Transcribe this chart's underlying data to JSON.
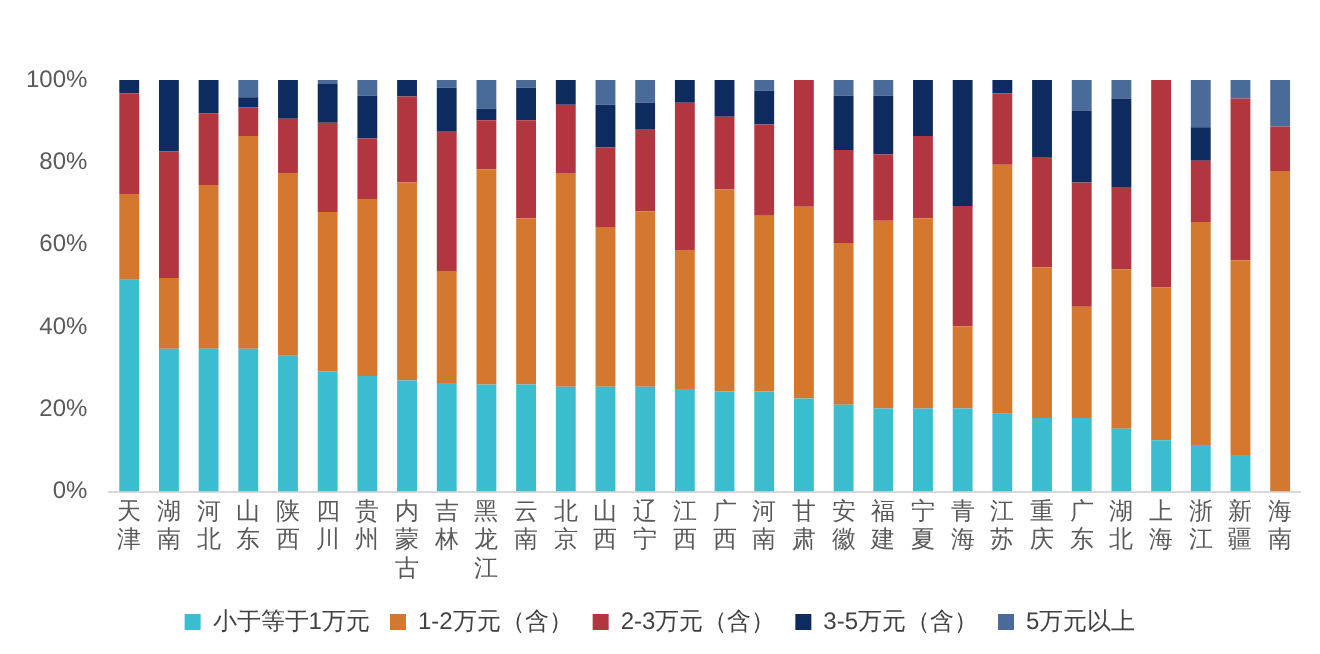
{
  "chart_data": {
    "type": "bar",
    "stacked": true,
    "legend": "bottom",
    "grid": false,
    "categories": [
      "天津",
      "湖南",
      "河北",
      "山东",
      "陕西",
      "四川",
      "贵州",
      "内蒙古",
      "吉林",
      "黑龙江",
      "云南",
      "北京",
      "山西",
      "辽宁",
      "江西",
      "广西",
      "河南",
      "甘肃",
      "安徽",
      "福建",
      "宁夏",
      "青海",
      "江苏",
      "重庆",
      "广东",
      "湖北",
      "上海",
      "浙江",
      "新疆",
      "海南"
    ],
    "ylim": [
      0,
      100
    ],
    "yticks": [
      {
        "value": 0,
        "label": "0%"
      },
      {
        "value": 20,
        "label": "20%"
      },
      {
        "value": 40,
        "label": "40%"
      },
      {
        "value": 60,
        "label": "60%"
      },
      {
        "value": 80,
        "label": "80%"
      },
      {
        "value": 100,
        "label": "100%"
      }
    ],
    "series": [
      {
        "name": "小于等于1万元",
        "color": "#3bbccf",
        "values": [
          51.5,
          34.7,
          34.7,
          34.7,
          33,
          29.2,
          28.1,
          27,
          26.4,
          26,
          26,
          25.5,
          25.5,
          25.5,
          24.9,
          24.3,
          24.3,
          22.6,
          21.1,
          20.2,
          20.2,
          20.2,
          18.9,
          17.9,
          17.9,
          15.3,
          12.5,
          11.3,
          8.9,
          0
        ]
      },
      {
        "name": "1-2万元（含）",
        "color": "#d4772f",
        "values": [
          20.8,
          17.2,
          39.8,
          51.7,
          44.4,
          38.7,
          43,
          48.1,
          27.2,
          52.3,
          40.4,
          51.9,
          38.8,
          42.6,
          33.8,
          49.1,
          42.7,
          46.6,
          39.3,
          45.6,
          46.2,
          20,
          60.5,
          36.6,
          27,
          38.7,
          37.1,
          54.2,
          47.3,
          77.9
        ]
      },
      {
        "name": "2-3万元（含）",
        "color": "#b23640",
        "values": [
          24.5,
          30.7,
          17.4,
          7,
          13.2,
          21.7,
          14.7,
          20.9,
          33.8,
          11.9,
          23.8,
          16.6,
          19.3,
          19.8,
          35.8,
          17.7,
          22.2,
          30.8,
          22.6,
          16.1,
          20,
          29.2,
          17.4,
          26.8,
          30.2,
          20,
          50.4,
          14.9,
          39.3,
          10.8
        ]
      },
      {
        "name": "3-5万元（含）",
        "color": "#0d2b5e",
        "values": [
          3.2,
          17.4,
          8.1,
          2.4,
          9.4,
          9.4,
          10.4,
          4,
          10.7,
          2.8,
          7.9,
          6,
          10.4,
          6.6,
          5.5,
          8.9,
          8.2,
          0,
          13.2,
          14.3,
          13.6,
          30.6,
          3.2,
          18.7,
          17.5,
          21.5,
          0,
          8.1,
          0,
          0
        ]
      },
      {
        "name": "5万元以上",
        "color": "#4a6a9a",
        "values": [
          0,
          0,
          0,
          4.2,
          0,
          1,
          3.8,
          0,
          1.9,
          7,
          1.9,
          0,
          6,
          5.5,
          0,
          0,
          2.6,
          0,
          3.8,
          3.8,
          0,
          0,
          0,
          0,
          7.4,
          4.5,
          0,
          11.5,
          4.5,
          11.3
        ]
      }
    ]
  }
}
